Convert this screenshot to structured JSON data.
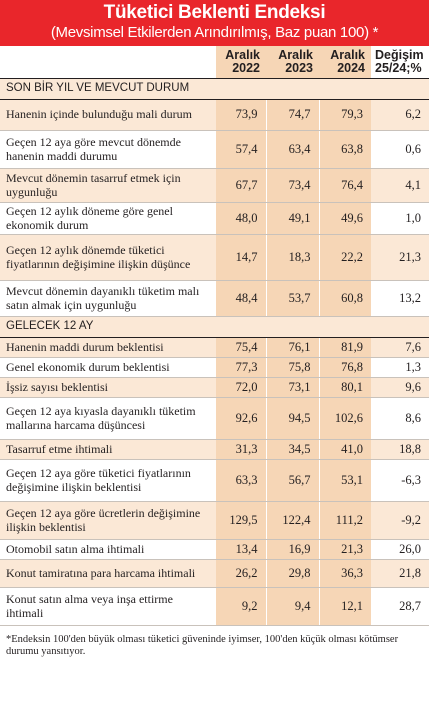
{
  "title": "Tüketici Beklenti Endeksi",
  "subtitle": "(Mevsimsel Etkilerden Arındırılmış, Baz puan 100) *",
  "columns": [
    {
      "l1": "Aralık",
      "l2": "2022"
    },
    {
      "l1": "Aralık",
      "l2": "2023"
    },
    {
      "l1": "Aralık",
      "l2": "2024"
    },
    {
      "l1": "Değişim",
      "l2": "25/24;%"
    }
  ],
  "sections": [
    {
      "heading": "SON BİR YIL VE MEVCUT DURUM",
      "rows": [
        {
          "label": "Hanenin içinde bulunduğu mali durum",
          "values": [
            "73,9",
            "74,7",
            "79,3",
            "6,2"
          ]
        },
        {
          "label": "Geçen 12 aya göre mevcut dönemde hanenin maddi durumu",
          "values": [
            "57,4",
            "63,4",
            "63,8",
            "0,6"
          ]
        },
        {
          "label": "Mevcut dönemin tasarruf etmek için uygunluğu",
          "values": [
            "67,7",
            "73,4",
            "76,4",
            "4,1"
          ]
        },
        {
          "label": "Geçen 12 aylık döneme göre genel ekonomik durum",
          "values": [
            "48,0",
            "49,1",
            "49,6",
            "1,0"
          ]
        },
        {
          "label": "Geçen 12 aylık dönemde tüketici fiyatlarının değişimine ilişkin düşünce",
          "values": [
            "14,7",
            "18,3",
            "22,2",
            "21,3"
          ]
        },
        {
          "label": "Mevcut dönemin dayanıklı tüketim malı satın almak için uygunluğu",
          "values": [
            "48,4",
            "53,7",
            "60,8",
            "13,2"
          ]
        }
      ]
    },
    {
      "heading": "GELECEK 12 AY",
      "rows": [
        {
          "label": "Hanenin maddi durum beklentisi",
          "values": [
            "75,4",
            "76,1",
            "81,9",
            "7,6"
          ]
        },
        {
          "label": "Genel ekonomik durum beklentisi",
          "values": [
            "77,3",
            "75,8",
            "76,8",
            "1,3"
          ]
        },
        {
          "label": "İşsiz sayısı beklentisi",
          "values": [
            "72,0",
            "73,1",
            "80,1",
            "9,6"
          ]
        },
        {
          "label": "Geçen 12 aya kıyasla dayanıklı tüketim mallarına harcama düşüncesi",
          "values": [
            "92,6",
            "94,5",
            "102,6",
            "8,6"
          ]
        },
        {
          "label": "Tasarruf etme ihtimali",
          "values": [
            "31,3",
            "34,5",
            "41,0",
            "18,8"
          ]
        },
        {
          "label": "Geçen 12 aya göre tüketici fiyatlarının değişimine ilişkin beklentisi",
          "values": [
            "63,3",
            "56,7",
            "53,1",
            "-6,3"
          ]
        },
        {
          "label": "Geçen 12 aya göre ücretlerin değişimine ilişkin beklentisi",
          "values": [
            "129,5",
            "122,4",
            "111,2",
            "-9,2"
          ]
        },
        {
          "label": "Otomobil satın alma ihtimali",
          "values": [
            "13,4",
            "16,9",
            "21,3",
            "26,0"
          ]
        },
        {
          "label": "Konut tamiratına para harcama ihtimali",
          "values": [
            "26,2",
            "29,8",
            "36,3",
            "21,8"
          ]
        },
        {
          "label": "Konut satın alma veya inşa ettirme ihtimali",
          "values": [
            "9,2",
            "9,4",
            "12,1",
            "28,7"
          ]
        }
      ]
    }
  ],
  "footnote": "*Endeksin 100'den büyük olması tüketici güveninde iyimser, 100'den küçük olması kötümser durumu yansıtıyor."
}
